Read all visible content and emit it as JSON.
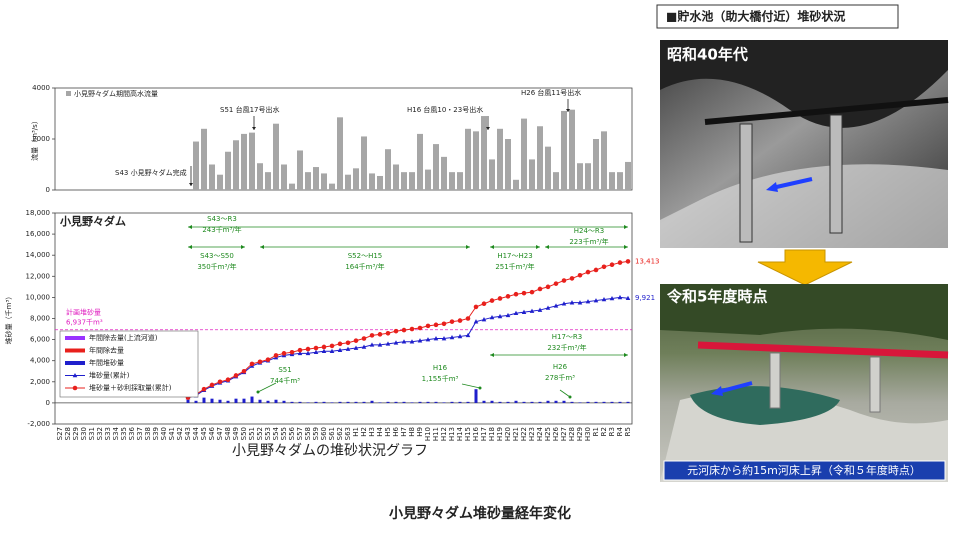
{
  "chart_data": [
    {
      "type": "bar",
      "y_label": "流量（m³/s）",
      "categories": [
        "S27",
        "S28",
        "S29",
        "S30",
        "S31",
        "S32",
        "S33",
        "S34",
        "S35",
        "S36",
        "S37",
        "S38",
        "S39",
        "S40",
        "S41",
        "S42",
        "S43",
        "S44",
        "S45",
        "S46",
        "S47",
        "S48",
        "S49",
        "S50",
        "S51",
        "S52",
        "S53",
        "S54",
        "S55",
        "S56",
        "S57",
        "S58",
        "S59",
        "S60",
        "S61",
        "S62",
        "S63",
        "H1",
        "H2",
        "H3",
        "H4",
        "H5",
        "H6",
        "H7",
        "H8",
        "H9",
        "H10",
        "H11",
        "H12",
        "H13",
        "H14",
        "H15",
        "H16",
        "H17",
        "H18",
        "H19",
        "H20",
        "H21",
        "H22",
        "H23",
        "H24",
        "H25",
        "H26",
        "H27",
        "H28",
        "H29",
        "H30",
        "R1",
        "R2",
        "R3",
        "R4",
        "R5"
      ],
      "series": [
        {
          "name": "小見野々ダム期間高水流量",
          "color": "#a6a6a6",
          "values": [
            null,
            null,
            null,
            null,
            null,
            null,
            null,
            null,
            null,
            null,
            null,
            null,
            null,
            null,
            null,
            null,
            null,
            1900,
            2400,
            1000,
            600,
            1500,
            1950,
            2200,
            2250,
            1050,
            700,
            2600,
            1000,
            250,
            1550,
            700,
            900,
            650,
            250,
            2850,
            600,
            850,
            2100,
            650,
            550,
            1600,
            1000,
            700,
            700,
            2200,
            800,
            1800,
            1300,
            700,
            700,
            2400,
            2300,
            2900,
            1200,
            2400,
            2000,
            400,
            2800,
            1200,
            2500,
            1700,
            700,
            3100,
            3150,
            1050,
            1050,
            2000,
            2300,
            700,
            700,
            1100
          ]
        }
      ],
      "ylim": [
        0,
        4000
      ],
      "yticks": [
        0,
        2000,
        4000
      ],
      "annotations": [
        {
          "text": "S43 小見野々ダム完成"
        },
        {
          "text": "S51 台風17号出水"
        },
        {
          "text": "H16 台風10・23号出水"
        },
        {
          "text": "H26 台風11号出水"
        }
      ]
    },
    {
      "type": "line",
      "title": "小見野々ダム",
      "y_label": "堆砂量（千m³）",
      "caption": "小見野々ダムの堆砂状況グラフ",
      "categories": [
        "S27",
        "S28",
        "S29",
        "S30",
        "S31",
        "S32",
        "S33",
        "S34",
        "S35",
        "S36",
        "S37",
        "S38",
        "S39",
        "S40",
        "S41",
        "S42",
        "S43",
        "S44",
        "S45",
        "S46",
        "S47",
        "S48",
        "S49",
        "S50",
        "S51",
        "S52",
        "S53",
        "S54",
        "S55",
        "S56",
        "S57",
        "S58",
        "S59",
        "S60",
        "S61",
        "S62",
        "S63",
        "H1",
        "H2",
        "H3",
        "H4",
        "H5",
        "H6",
        "H7",
        "H8",
        "H9",
        "H10",
        "H11",
        "H12",
        "H13",
        "H14",
        "H15",
        "H16",
        "H17",
        "H18",
        "H19",
        "H20",
        "H21",
        "H22",
        "H23",
        "H24",
        "H25",
        "H26",
        "H27",
        "H28",
        "H29",
        "H30",
        "R1",
        "R2",
        "R3",
        "R4",
        "R5"
      ],
      "series": [
        {
          "name": "年間堆砂量",
          "color": "#1f1fcc",
          "kind": "bar",
          "values": [
            null,
            null,
            null,
            null,
            null,
            null,
            null,
            null,
            null,
            null,
            null,
            null,
            null,
            null,
            null,
            null,
            300,
            200,
            500,
            400,
            300,
            200,
            400,
            400,
            600,
            300,
            200,
            300,
            200,
            100,
            100,
            50,
            100,
            100,
            50,
            100,
            100,
            100,
            100,
            200,
            50,
            100,
            100,
            100,
            50,
            100,
            100,
            100,
            50,
            100,
            100,
            100,
            1300,
            200,
            200,
            100,
            100,
            200,
            100,
            100,
            100,
            200,
            200,
            200,
            100,
            50,
            100,
            100,
            100,
            100,
            100,
            100
          ]
        },
        {
          "name": "堆砂量(累計)",
          "color": "#1f1fcc",
          "kind": "triangle",
          "values": [
            null,
            null,
            null,
            null,
            null,
            null,
            null,
            null,
            null,
            null,
            null,
            null,
            null,
            null,
            null,
            null,
            500,
            700,
            1200,
            1600,
            1900,
            2100,
            2500,
            2900,
            3500,
            3800,
            4000,
            4300,
            4500,
            4600,
            4700,
            4700,
            4800,
            4900,
            4900,
            5000,
            5100,
            5200,
            5300,
            5500,
            5500,
            5600,
            5700,
            5800,
            5800,
            5900,
            6000,
            6100,
            6100,
            6200,
            6300,
            6400,
            7700,
            7900,
            8100,
            8200,
            8300,
            8500,
            8600,
            8700,
            8800,
            9000,
            9200,
            9400,
            9500,
            9500,
            9600,
            9700,
            9800,
            9900,
            10000,
            9921
          ],
          "value_labels": [
            null,
            null,
            null,
            null,
            null,
            null,
            null,
            null,
            null,
            null,
            null,
            null,
            null,
            null,
            null,
            null,
            null,
            null,
            null,
            null,
            null,
            null,
            null,
            null,
            null,
            null,
            null,
            null,
            null,
            null,
            null,
            null,
            null,
            null,
            null,
            null,
            null,
            null,
            null,
            null,
            null,
            null,
            null,
            null,
            null,
            null,
            null,
            null,
            null,
            null,
            null,
            null,
            null,
            null,
            null,
            null,
            null,
            null,
            null,
            null,
            null,
            null,
            null,
            null,
            null,
            null,
            null,
            null,
            null,
            null,
            null,
            "9,921"
          ]
        },
        {
          "name": "堆砂量＋砂利採取量(累計)",
          "color": "#e8201c",
          "kind": "circle",
          "values": [
            null,
            null,
            null,
            null,
            null,
            null,
            null,
            null,
            null,
            null,
            null,
            null,
            null,
            null,
            null,
            null,
            500,
            800,
            1300,
            1700,
            2000,
            2200,
            2600,
            3000,
            3700,
            3900,
            4100,
            4500,
            4700,
            4800,
            5000,
            5100,
            5200,
            5300,
            5400,
            5600,
            5700,
            5900,
            6100,
            6400,
            6500,
            6600,
            6800,
            6900,
            7000,
            7100,
            7300,
            7400,
            7500,
            7700,
            7800,
            8000,
            9100,
            9400,
            9700,
            9900,
            10100,
            10300,
            10400,
            10500,
            10800,
            11000,
            11300,
            11600,
            11800,
            12100,
            12400,
            12600,
            12900,
            13100,
            13300,
            13413
          ],
          "value_labels": [
            null,
            null,
            null,
            null,
            null,
            null,
            null,
            null,
            null,
            null,
            null,
            null,
            null,
            null,
            null,
            null,
            null,
            null,
            null,
            null,
            null,
            null,
            null,
            null,
            null,
            null,
            null,
            null,
            null,
            null,
            null,
            null,
            null,
            null,
            null,
            null,
            null,
            null,
            null,
            null,
            null,
            null,
            null,
            null,
            null,
            null,
            null,
            null,
            null,
            null,
            null,
            null,
            null,
            null,
            null,
            null,
            null,
            null,
            null,
            null,
            null,
            null,
            null,
            null,
            null,
            null,
            null,
            null,
            null,
            null,
            null,
            "13,413"
          ]
        }
      ],
      "legend_extra": [
        {
          "name": "年間除去量(上流河道)",
          "color": "#9933ff"
        },
        {
          "name": "年間除去量",
          "color": "#e8201c"
        }
      ],
      "ylim": [
        -2000,
        18000
      ],
      "yticks": [
        {
          "value": -2000,
          "label": "-2,000"
        },
        0,
        {
          "value": 2000,
          "label": "2,000"
        },
        {
          "value": 4000,
          "label": "4,000"
        },
        {
          "value": 6000,
          "label": "6,000"
        },
        {
          "value": 8000,
          "label": "8,000"
        },
        {
          "value": 10000,
          "label": "10,000"
        },
        {
          "value": 12000,
          "label": "12,000"
        },
        {
          "value": 14000,
          "label": "14,000"
        },
        {
          "value": 16000,
          "label": "16,000"
        },
        {
          "value": 18000,
          "label": "18,000"
        }
      ],
      "planned": {
        "label": "計画堆砂量",
        "value_label": "6,937千m³",
        "value": 6937
      },
      "periods": [
        {
          "label": "S43～R3",
          "rate": "243千m³/年"
        },
        {
          "label": "S43～S50",
          "rate": "350千m³/年"
        },
        {
          "label": "S52～H15",
          "rate": "164千m³/年"
        },
        {
          "label": "H17～H23",
          "rate": "251千m³/年"
        },
        {
          "label": "H24～R3",
          "rate": "223千m³/年"
        },
        {
          "label": "H17～R3",
          "rate": "232千m³/年"
        }
      ],
      "events": [
        {
          "label": "S51",
          "amount": "744千m³"
        },
        {
          "label": "H16",
          "amount": "1,155千m³"
        },
        {
          "label": "H26",
          "amount": "278千m³"
        }
      ]
    }
  ],
  "panel": {
    "heading": "■貯水池（助大橋付近）堆砂状況",
    "photos": [
      {
        "label": "昭和40年代"
      },
      {
        "label": "令和5年度時点",
        "caption": "元河床から約15m河床上昇（令和５年度時点）"
      }
    ]
  },
  "footer": "小見野々ダム堆砂量経年変化"
}
